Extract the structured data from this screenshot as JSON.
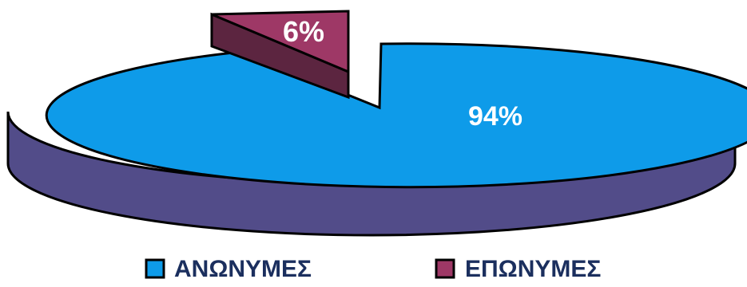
{
  "chart_data": {
    "type": "pie",
    "style": "3d-exploded",
    "categories": [
      "ΑΝΩΝΥΜΕΣ",
      "ΕΠΩΝΥΜΕΣ"
    ],
    "values": [
      94,
      6
    ],
    "labels": [
      "94%",
      "6%"
    ],
    "colors": {
      "anonymous_top": "#0e9be9",
      "anonymous_side": "#524c89",
      "named_top": "#9e3866",
      "named_side": "#5c2540",
      "outline": "#000000"
    },
    "exploded": "ΕΠΩΝΥΜΕΣ",
    "legend_position": "bottom",
    "title": ""
  }
}
